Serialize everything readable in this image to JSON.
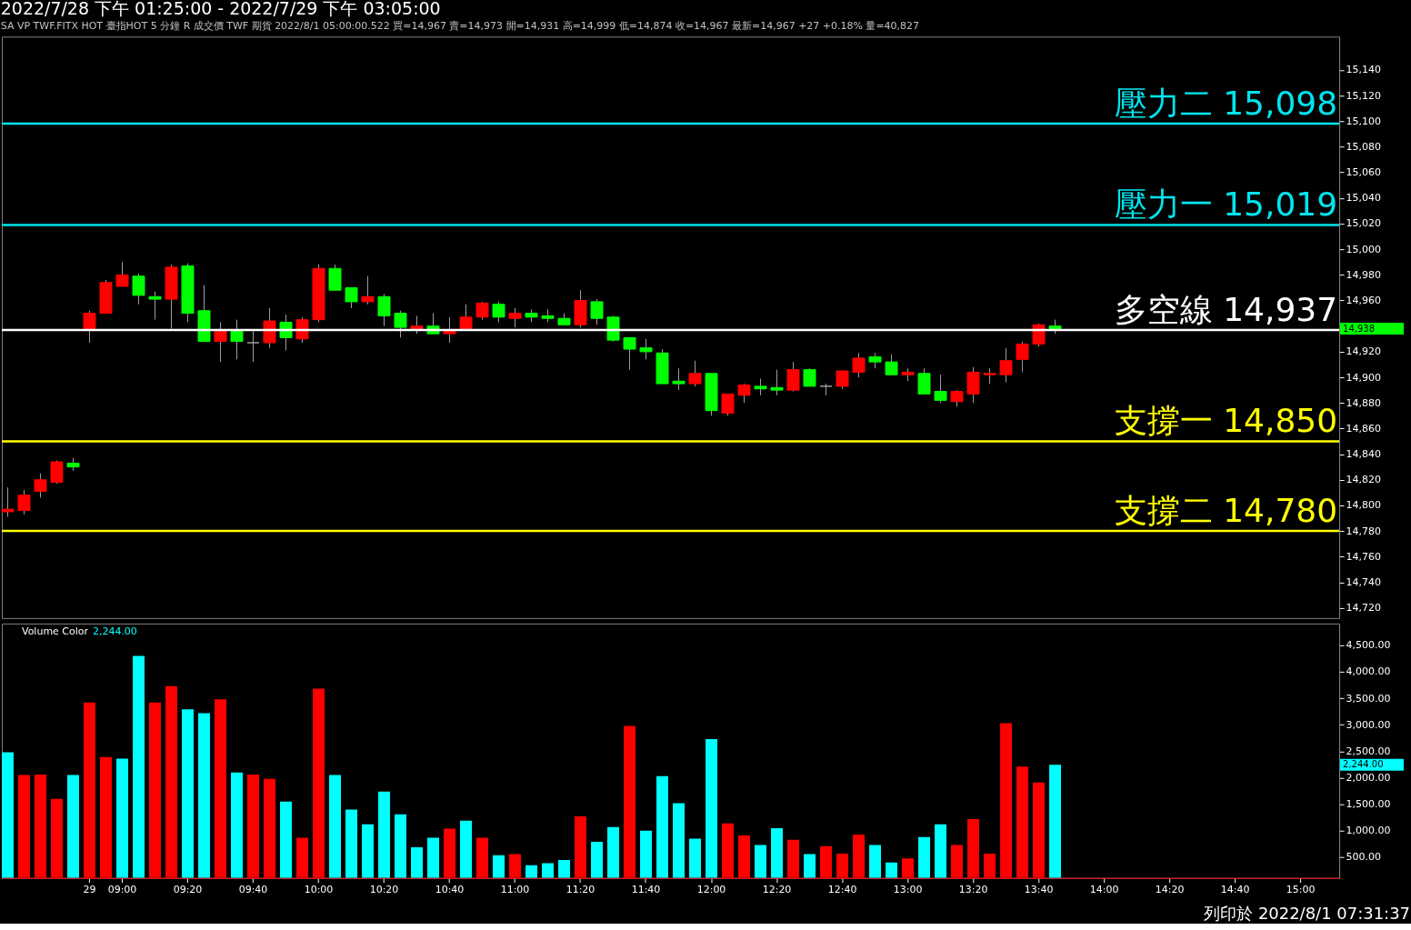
{
  "chart_data": [
    {
      "type": "candlestick",
      "title": "2022/7/28 下午 01:25:00 - 2022/7/29 下午 03:05:00",
      "subtitle": "SA  VP  TWF.FITX HOT  臺指HOT 5 分鐘  R  成交價  TWF  期貨  2022/8/1  05:00:00.522  買=14,967  賣=14,973  開=14,931  高=14,999  低=14,874  收=14,967  最新=14,967  +27  +0.18%  量=40,827",
      "categories": [
        null,
        null,
        null,
        null,
        null,
        null,
        null,
        null,
        null,
        null,
        null,
        null,
        null,
        null,
        null,
        null,
        null,
        null,
        null,
        null,
        null,
        null,
        null,
        null,
        null,
        null,
        null,
        null,
        null,
        null,
        null,
        null,
        null,
        null,
        null,
        null,
        null,
        null,
        null,
        null,
        null,
        null,
        null,
        null,
        null,
        null,
        null,
        null,
        null,
        null,
        null,
        null,
        null,
        null,
        null,
        null,
        null,
        null,
        null,
        null,
        null,
        null,
        null,
        null,
        null,
        null,
        null,
        null,
        null,
        null,
        null,
        null,
        null,
        null,
        null,
        null,
        null,
        null,
        null,
        null,
        null,
        null
      ],
      "ohlc": [
        [
          14795,
          14814,
          14791,
          14797
        ],
        [
          14796,
          14812,
          14793,
          14808
        ],
        [
          14811,
          14825,
          14806,
          14820
        ],
        [
          14818,
          14835,
          14817,
          14834
        ],
        [
          14833,
          14837,
          14827,
          14830
        ],
        [
          14938,
          14952,
          14927,
          14950
        ],
        [
          14950,
          14976,
          14950,
          14974
        ],
        [
          14971,
          14990,
          14971,
          14980
        ],
        [
          14979,
          14981,
          14957,
          14964
        ],
        [
          14963,
          14967,
          14945,
          14961
        ],
        [
          14961,
          14988,
          14938,
          14986
        ],
        [
          14987,
          14989,
          14943,
          14950
        ],
        [
          14952,
          14972,
          14928,
          14928
        ],
        [
          14928,
          14943,
          14912,
          14936
        ],
        [
          14936,
          14945,
          14914,
          14928
        ],
        [
          14927,
          14936,
          14912,
          14927
        ],
        [
          14927,
          14954,
          14923,
          14944
        ],
        [
          14943,
          14949,
          14921,
          14931
        ],
        [
          14930,
          14947,
          14927,
          14945
        ],
        [
          14945,
          14988,
          14943,
          14985
        ],
        [
          14985,
          14988,
          14968,
          14968
        ],
        [
          14970,
          14970,
          14954,
          14959
        ],
        [
          14959,
          14979,
          14957,
          14963
        ],
        [
          14963,
          14965,
          14940,
          14948
        ],
        [
          14950,
          14952,
          14931,
          14939
        ],
        [
          14938,
          14948,
          14934,
          14940
        ],
        [
          14940,
          14950,
          14934,
          14934
        ],
        [
          14934,
          14947,
          14927,
          14936
        ],
        [
          14938,
          14957,
          14938,
          14947
        ],
        [
          14947,
          14959,
          14945,
          14958
        ],
        [
          14957,
          14959,
          14943,
          14947
        ],
        [
          14946,
          14954,
          14939,
          14950
        ],
        [
          14950,
          14953,
          14943,
          14947
        ],
        [
          14948,
          14953,
          14943,
          14946
        ],
        [
          14946,
          14950,
          14941,
          14941
        ],
        [
          14941,
          14968,
          14939,
          14960
        ],
        [
          14959,
          14961,
          14941,
          14946
        ],
        [
          14947,
          14948,
          14928,
          14929
        ],
        [
          14931,
          14931,
          14906,
          14922
        ],
        [
          14923,
          14930,
          14914,
          14920
        ],
        [
          14919,
          14922,
          14895,
          14895
        ],
        [
          14897,
          14907,
          14890,
          14895
        ],
        [
          14895,
          14913,
          14893,
          14903
        ],
        [
          14903,
          14903,
          14870,
          14874
        ],
        [
          14872,
          14887,
          14870,
          14887
        ],
        [
          14886,
          14895,
          14880,
          14894
        ],
        [
          14893,
          14899,
          14886,
          14891
        ],
        [
          14892,
          14906,
          14886,
          14890
        ],
        [
          14890,
          14912,
          14889,
          14906
        ],
        [
          14906,
          14907,
          14893,
          14893
        ],
        [
          14893,
          14895,
          14886,
          14893
        ],
        [
          14893,
          14905,
          14891,
          14905
        ],
        [
          14904,
          14919,
          14900,
          14915
        ],
        [
          14916,
          14919,
          14907,
          14912
        ],
        [
          14912,
          14918,
          14902,
          14902
        ],
        [
          14902,
          14907,
          14897,
          14904
        ],
        [
          14903,
          14907,
          14887,
          14887
        ],
        [
          14889,
          14902,
          14880,
          14882
        ],
        [
          14881,
          14890,
          14877,
          14889
        ],
        [
          14887,
          14908,
          14880,
          14904
        ],
        [
          14902,
          14907,
          14895,
          14903
        ],
        [
          14902,
          14923,
          14896,
          14913
        ],
        [
          14914,
          14928,
          14904,
          14926
        ],
        [
          14926,
          14942,
          14924,
          14941
        ],
        [
          14940,
          14945,
          14934,
          14938
        ],
        null,
        null,
        null,
        null,
        null,
        null,
        null,
        null,
        null,
        null,
        null,
        null,
        null,
        null,
        null,
        null,
        null
      ],
      "colors": [
        "#ff0000",
        "#ff0000",
        "#ff0000",
        "#ff0000",
        "#00ff00",
        "#ff0000",
        "#ff0000",
        "#ff0000",
        "#00ff00",
        "#00ff00",
        "#ff0000",
        "#00ff00",
        "#00ff00",
        "#ff0000",
        "#00ff00",
        "#a0a0a0",
        "#ff0000",
        "#00ff00",
        "#ff0000",
        "#ff0000",
        "#00ff00",
        "#00ff00",
        "#ff0000",
        "#00ff00",
        "#00ff00",
        "#ff0000",
        "#00ff00",
        "#ff0000",
        "#ff0000",
        "#ff0000",
        "#00ff00",
        "#ff0000",
        "#00ff00",
        "#00ff00",
        "#00ff00",
        "#ff0000",
        "#00ff00",
        "#00ff00",
        "#00ff00",
        "#00ff00",
        "#00ff00",
        "#00ff00",
        "#ff0000",
        "#00ff00",
        "#ff0000",
        "#ff0000",
        "#00ff00",
        "#00ff00",
        "#ff0000",
        "#00ff00",
        "#a0a0a0",
        "#ff0000",
        "#ff0000",
        "#00ff00",
        "#00ff00",
        "#ff0000",
        "#00ff00",
        "#00ff00",
        "#ff0000",
        "#ff0000",
        "#ff0000",
        "#ff0000",
        "#ff0000",
        "#ff0000",
        "#00ff00",
        null,
        null,
        null,
        null,
        null,
        null,
        null,
        null,
        null,
        null,
        null,
        null,
        null,
        null,
        null,
        null,
        null
      ],
      "ylim": [
        14712,
        15166
      ],
      "yticks": [
        {
          "value": 14720,
          "label": "14,720"
        },
        {
          "value": 14740,
          "label": "14,740"
        },
        {
          "value": 14760,
          "label": "14,760"
        },
        {
          "value": 14780,
          "label": "14,780"
        },
        {
          "value": 14800,
          "label": "14,800"
        },
        {
          "value": 14820,
          "label": "14,820"
        },
        {
          "value": 14840,
          "label": "14,840"
        },
        {
          "value": 14860,
          "label": "14,860"
        },
        {
          "value": 14880,
          "label": "14,880"
        },
        {
          "value": 14900,
          "label": "14,900"
        },
        {
          "value": 14920,
          "label": "14,920"
        },
        {
          "value": 14960,
          "label": "14,960"
        },
        {
          "value": 14980,
          "label": "14,980"
        },
        {
          "value": 15000,
          "label": "15,000"
        },
        {
          "value": 15020,
          "label": "15,020"
        },
        {
          "value": 15040,
          "label": "15,040"
        },
        {
          "value": 15060,
          "label": "15,060"
        },
        {
          "value": 15080,
          "label": "15,080"
        },
        {
          "value": 15100,
          "label": "15,100"
        },
        {
          "value": 15120,
          "label": "15,120"
        },
        {
          "value": 15140,
          "label": "15,140"
        }
      ],
      "tick_labels": "y",
      "ref_lines": [
        {
          "axis": "y",
          "value": 15098,
          "label": "壓力二 15,098",
          "color": "#00e5ee"
        },
        {
          "axis": "y",
          "value": 15019,
          "label": "壓力一 15,019",
          "color": "#00e5ee"
        },
        {
          "axis": "y",
          "value": 14937,
          "label": "多空線 14,937",
          "color": "#ffffff"
        },
        {
          "axis": "y",
          "value": 14850,
          "label": "支撐一 14,850",
          "color": "#ffff00"
        },
        {
          "axis": "y",
          "value": 14780,
          "label": "支撐二 14,780",
          "color": "#ffff00"
        }
      ],
      "annotations": [
        "14,938"
      ]
    },
    {
      "type": "bar",
      "title": "Volume Color",
      "categories": [
        null,
        null,
        null,
        null,
        null,
        "29",
        null,
        "09:00",
        null,
        null,
        null,
        "09:20",
        null,
        null,
        null,
        "09:40",
        null,
        null,
        null,
        "10:00",
        null,
        null,
        null,
        "10:20",
        null,
        null,
        null,
        "10:40",
        null,
        null,
        null,
        "11:00",
        null,
        null,
        null,
        "11:20",
        null,
        null,
        null,
        "11:40",
        null,
        null,
        null,
        "12:00",
        null,
        null,
        null,
        "12:20",
        null,
        null,
        null,
        "12:40",
        null,
        null,
        null,
        "13:00",
        null,
        null,
        null,
        "13:20",
        null,
        null,
        null,
        "13:40",
        null,
        null,
        null,
        "14:00",
        null,
        null,
        null,
        "14:20",
        null,
        null,
        null,
        "14:40",
        null,
        null,
        null,
        "15:00",
        null,
        null
      ],
      "values": [
        2480,
        2050,
        2060,
        1600,
        2050,
        3420,
        2390,
        2360,
        4300,
        3420,
        3730,
        3290,
        3220,
        3480,
        2100,
        2060,
        1980,
        1550,
        870,
        3680,
        2050,
        1400,
        1120,
        1740,
        1310,
        690,
        870,
        1040,
        1190,
        870,
        540,
        560,
        350,
        390,
        450,
        1270,
        790,
        1070,
        2980,
        1000,
        2030,
        1520,
        850,
        2730,
        1140,
        910,
        730,
        1050,
        830,
        560,
        710,
        570,
        930,
        730,
        400,
        480,
        880,
        1120,
        730,
        1220,
        570,
        3030,
        2210,
        1910,
        2244,
        null,
        null,
        null,
        null,
        null,
        null,
        null,
        null,
        null,
        null,
        null,
        null,
        null,
        null,
        null,
        null,
        null
      ],
      "colors": [
        "#00ffff",
        "#ff0000",
        "#ff0000",
        "#ff0000",
        "#00ffff",
        "#ff0000",
        "#ff0000",
        "#00ffff",
        "#00ffff",
        "#ff0000",
        "#ff0000",
        "#00ffff",
        "#00ffff",
        "#ff0000",
        "#00ffff",
        "#ff0000",
        "#ff0000",
        "#00ffff",
        "#ff0000",
        "#ff0000",
        "#00ffff",
        "#00ffff",
        "#00ffff",
        "#00ffff",
        "#00ffff",
        "#00ffff",
        "#00ffff",
        "#ff0000",
        "#00ffff",
        "#ff0000",
        "#00ffff",
        "#ff0000",
        "#00ffff",
        "#00ffff",
        "#00ffff",
        "#ff0000",
        "#00ffff",
        "#00ffff",
        "#ff0000",
        "#00ffff",
        "#00ffff",
        "#00ffff",
        "#00ffff",
        "#00ffff",
        "#ff0000",
        "#ff0000",
        "#00ffff",
        "#00ffff",
        "#ff0000",
        "#00ffff",
        "#ff0000",
        "#ff0000",
        "#ff0000",
        "#00ffff",
        "#00ffff",
        "#ff0000",
        "#00ffff",
        "#00ffff",
        "#ff0000",
        "#ff0000",
        "#ff0000",
        "#ff0000",
        "#ff0000",
        "#ff0000",
        "#00ffff",
        null,
        null,
        null,
        null,
        null,
        null,
        null,
        null,
        null,
        null,
        null,
        null,
        null,
        null,
        null,
        null,
        null
      ],
      "ylim": [
        110,
        4910
      ],
      "yticks": [
        {
          "value": 500,
          "label": "500.00"
        },
        {
          "value": 1000,
          "label": "1,000.00"
        },
        {
          "value": 1500,
          "label": "1,500.00"
        },
        {
          "value": 2000,
          "label": "2,000.00"
        },
        {
          "value": 2500,
          "label": "2,500.00"
        },
        {
          "value": 3000,
          "label": "3,000.00"
        },
        {
          "value": 3500,
          "label": "3,500.00"
        },
        {
          "value": 4000,
          "label": "4,000.00"
        },
        {
          "value": 4500,
          "label": "4,500.00"
        }
      ],
      "annotations": [
        "2,244.00",
        "2,244.00",
        "列印於 2022/8/1 07:31:37"
      ]
    }
  ]
}
